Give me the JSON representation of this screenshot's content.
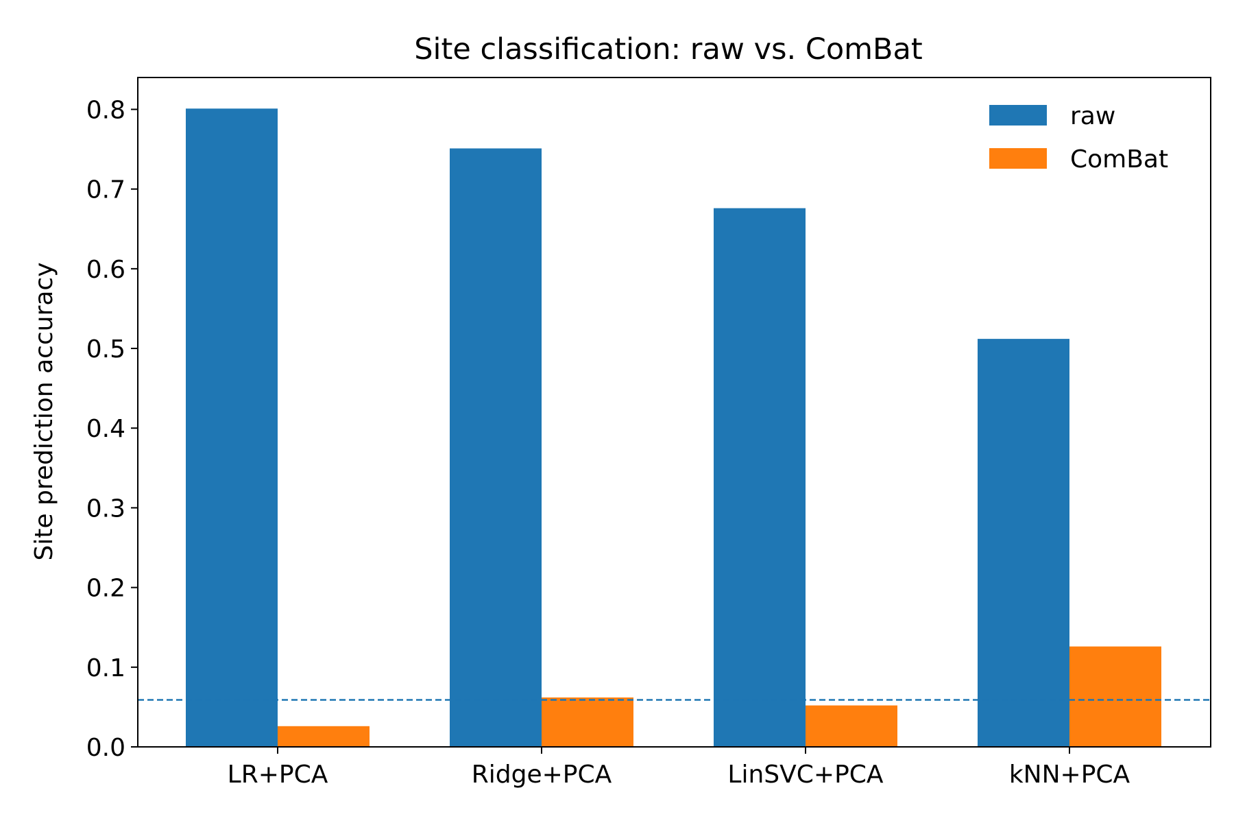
{
  "chart_data": {
    "type": "bar",
    "title": "Site classification: raw vs. ComBat",
    "xlabel": "",
    "ylabel": "Site prediction accuracy",
    "categories": [
      "LR+PCA",
      "Ridge+PCA",
      "LinSVC+PCA",
      "kNN+PCA"
    ],
    "series": [
      {
        "name": "raw",
        "color": "#1f77b4",
        "values": [
          0.801,
          0.751,
          0.676,
          0.512
        ]
      },
      {
        "name": "ComBat",
        "color": "#ff7f0e",
        "values": [
          0.026,
          0.062,
          0.052,
          0.126
        ]
      }
    ],
    "reference_line": {
      "value": 0.059,
      "style": "dashed",
      "color": "#1f77b4"
    },
    "ylim": [
      0,
      0.84
    ],
    "yticks": [
      "0.0",
      "0.1",
      "0.2",
      "0.3",
      "0.4",
      "0.5",
      "0.6",
      "0.7",
      "0.8"
    ],
    "grid": false,
    "legend_position": "top-right"
  }
}
